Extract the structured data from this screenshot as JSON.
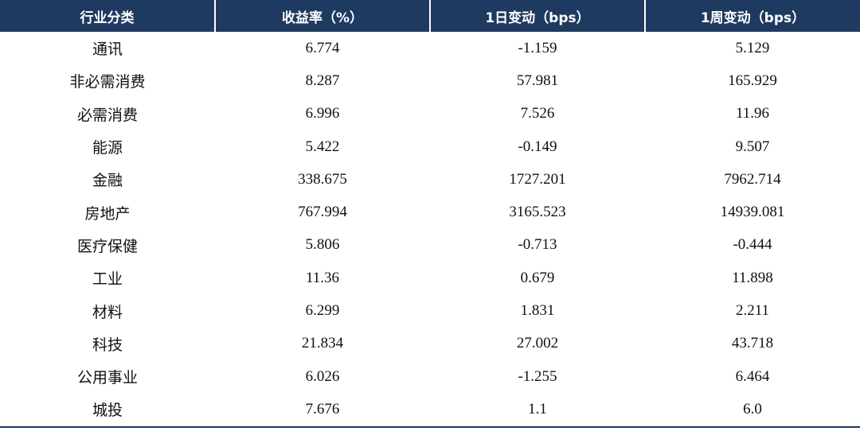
{
  "table": {
    "header": [
      "行业分类",
      "收益率（%）",
      "1日变动（bps）",
      "1周变动（bps）"
    ],
    "rows": [
      [
        "通讯",
        "6.774",
        "-1.159",
        "5.129"
      ],
      [
        "非必需消费",
        "8.287",
        "57.981",
        "165.929"
      ],
      [
        "必需消费",
        "6.996",
        "7.526",
        "11.96"
      ],
      [
        "能源",
        "5.422",
        "-0.149",
        "9.507"
      ],
      [
        "金融",
        "338.675",
        "1727.201",
        "7962.714"
      ],
      [
        "房地产",
        "767.994",
        "3165.523",
        "14939.081"
      ],
      [
        "医疗保健",
        "5.806",
        "-0.713",
        "-0.444"
      ],
      [
        "工业",
        "11.36",
        "0.679",
        "11.898"
      ],
      [
        "材料",
        "6.299",
        "1.831",
        "2.211"
      ],
      [
        "科技",
        "21.834",
        "27.002",
        "43.718"
      ],
      [
        "公用事业",
        "6.026",
        "-1.255",
        "6.464"
      ],
      [
        "城投",
        "7.676",
        "1.1",
        "6.0"
      ]
    ]
  }
}
